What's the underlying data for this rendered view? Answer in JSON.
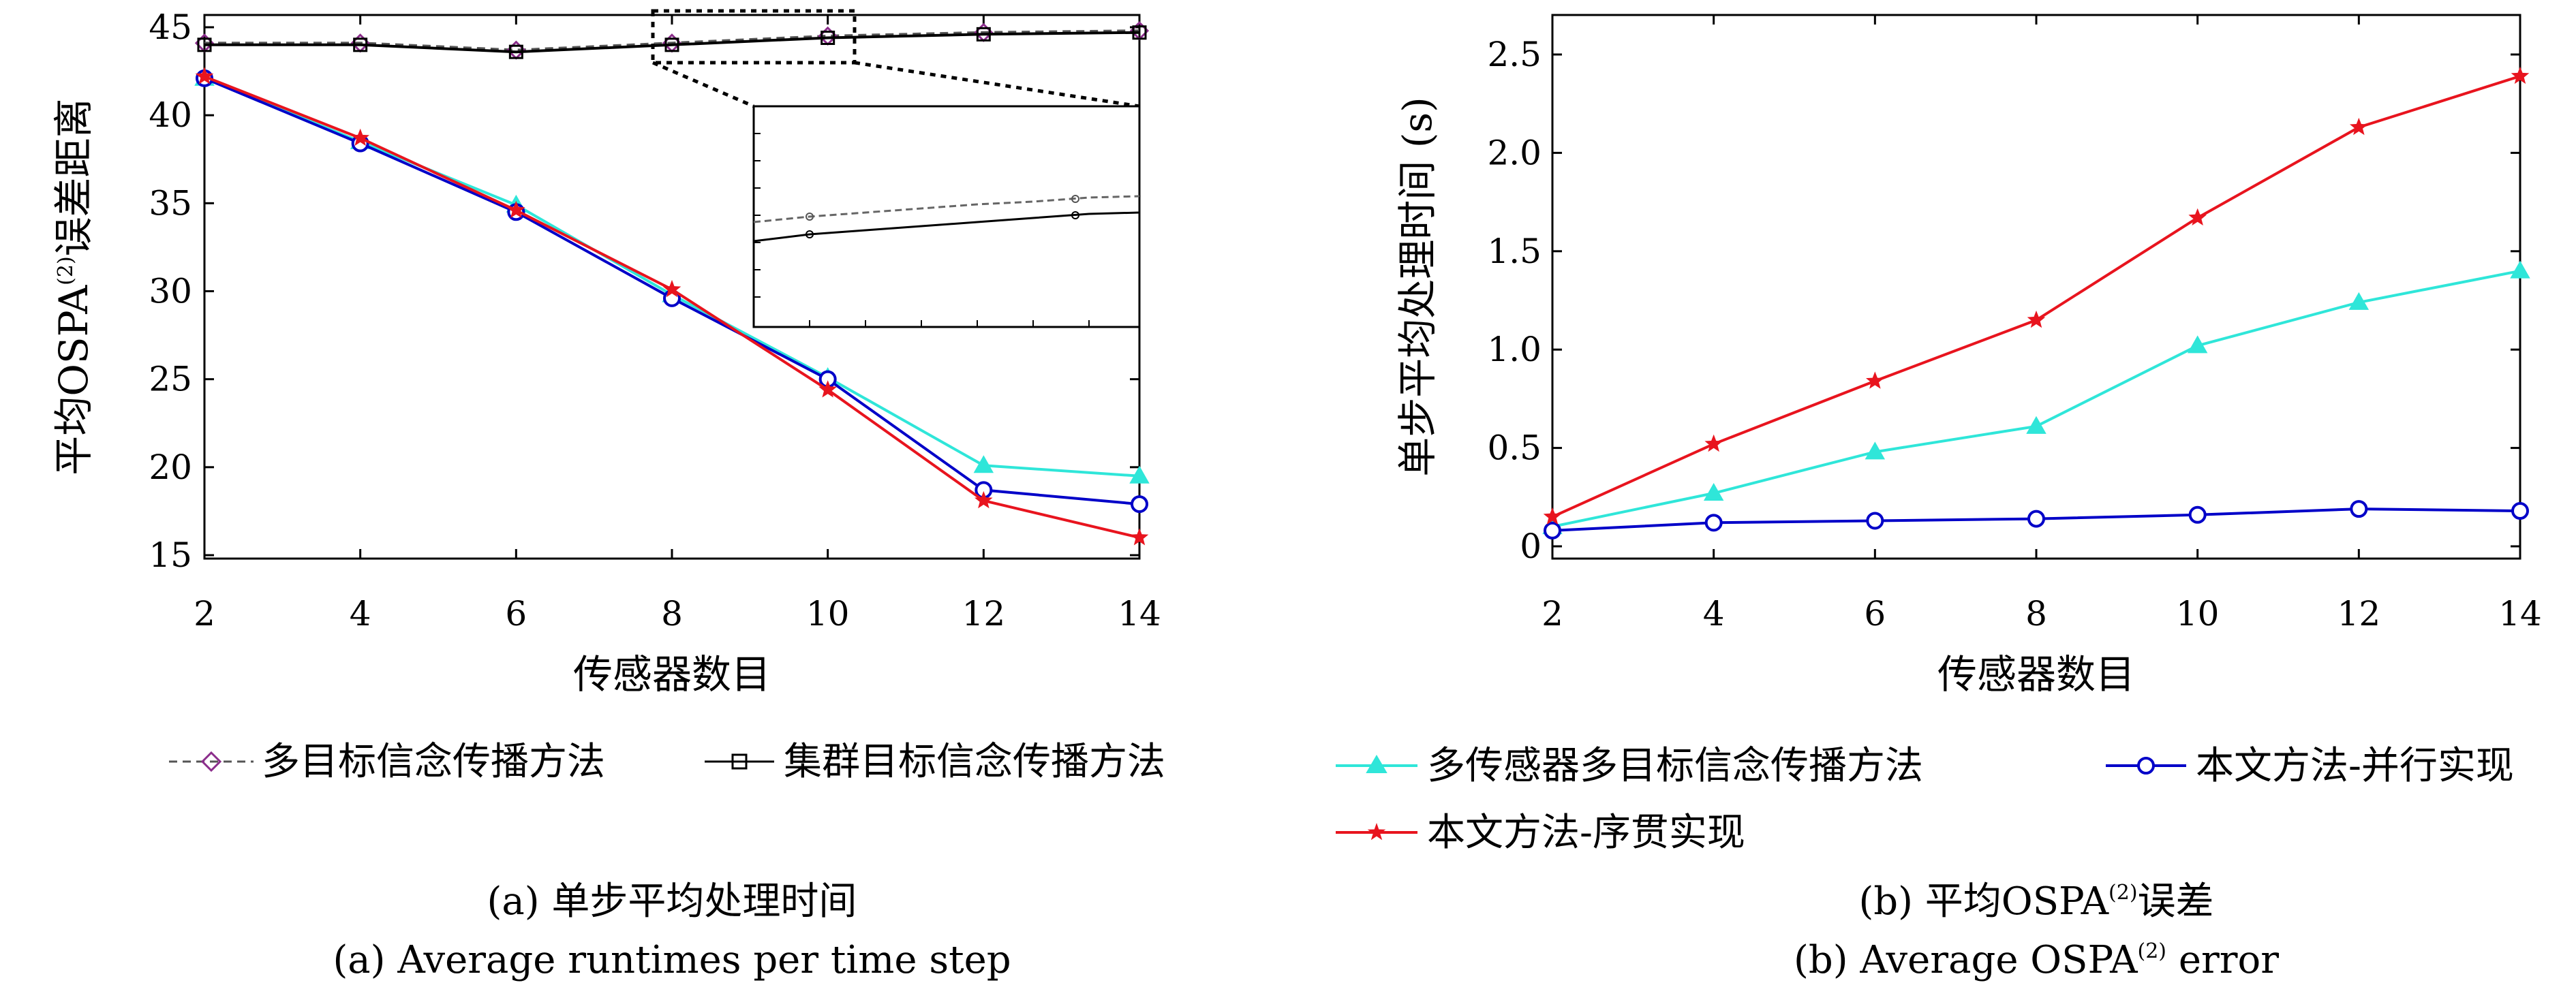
{
  "colors": {
    "belief": "#8B2D8B",
    "cluster": "#000000",
    "multisensor": "#2FE6D9",
    "parallel": "#0000C8",
    "sequential": "#E8141E"
  },
  "chart_data": [
    {
      "type": "line",
      "x": [
        2,
        4,
        6,
        8,
        10,
        12,
        14
      ],
      "xlabel": "传感器数目",
      "ylabel_main": "平均OSPA",
      "ylabel_sup": "(2)",
      "ylabel_tail": "误差距离",
      "xlim": [
        2,
        14
      ],
      "ylim": [
        15,
        45
      ],
      "xticks": [
        "2",
        "4",
        "6",
        "8",
        "10",
        "12",
        "14"
      ],
      "yticks": [
        "15",
        "20",
        "25",
        "30",
        "35",
        "40",
        "45"
      ],
      "grid": false,
      "series": [
        {
          "name": "多目标信念传播方法",
          "values": [
            44.1,
            44.1,
            43.7,
            44.1,
            44.5,
            44.7,
            44.8
          ]
        },
        {
          "name": "集群目标信念传播方法",
          "values": [
            44.0,
            44.0,
            43.6,
            44.0,
            44.4,
            44.6,
            44.7
          ]
        },
        {
          "name": "多传感器多目标信念传播方法",
          "values": [
            42.1,
            38.5,
            34.9,
            29.8,
            25.1,
            20.1,
            19.5
          ]
        },
        {
          "name": "本文方法-并行实现",
          "values": [
            42.1,
            38.4,
            34.5,
            29.6,
            25.0,
            18.7,
            17.9
          ]
        },
        {
          "name": "本文方法-序贯实现",
          "values": [
            42.2,
            38.7,
            34.6,
            30.1,
            24.4,
            18.1,
            16.0
          ]
        }
      ],
      "caption_zh": "(a) 单步平均处理时间",
      "caption_en": "(a) Average runtimes per time step"
    },
    {
      "type": "line",
      "x": [
        2,
        4,
        6,
        8,
        10,
        12,
        14
      ],
      "xlabel": "传感器数目",
      "ylabel": "单步平均处理时间 (s)",
      "xlim": [
        2,
        14
      ],
      "ylim": [
        0,
        2.7
      ],
      "xticks": [
        "2",
        "4",
        "6",
        "8",
        "10",
        "12",
        "14"
      ],
      "yticks": [
        "0",
        "0.5",
        "1.0",
        "1.5",
        "2.0",
        "2.5"
      ],
      "grid": false,
      "series": [
        {
          "name": "多传感器多目标信念传播方法",
          "values": [
            0.1,
            0.27,
            0.48,
            0.61,
            1.02,
            1.24,
            1.4
          ]
        },
        {
          "name": "本文方法-并行实现",
          "values": [
            0.08,
            0.12,
            0.13,
            0.14,
            0.16,
            0.19,
            0.18
          ]
        },
        {
          "name": "本文方法-序贯实现",
          "values": [
            0.15,
            0.52,
            0.84,
            1.15,
            1.67,
            2.13,
            2.39
          ]
        }
      ],
      "caption_zh_main": "(b) 平均OSPA",
      "caption_zh_sup": "(2)",
      "caption_zh_tail": "误差",
      "caption_en_main": "(b) Average OSPA",
      "caption_en_sup": "(2)",
      "caption_en_tail": " error"
    }
  ]
}
